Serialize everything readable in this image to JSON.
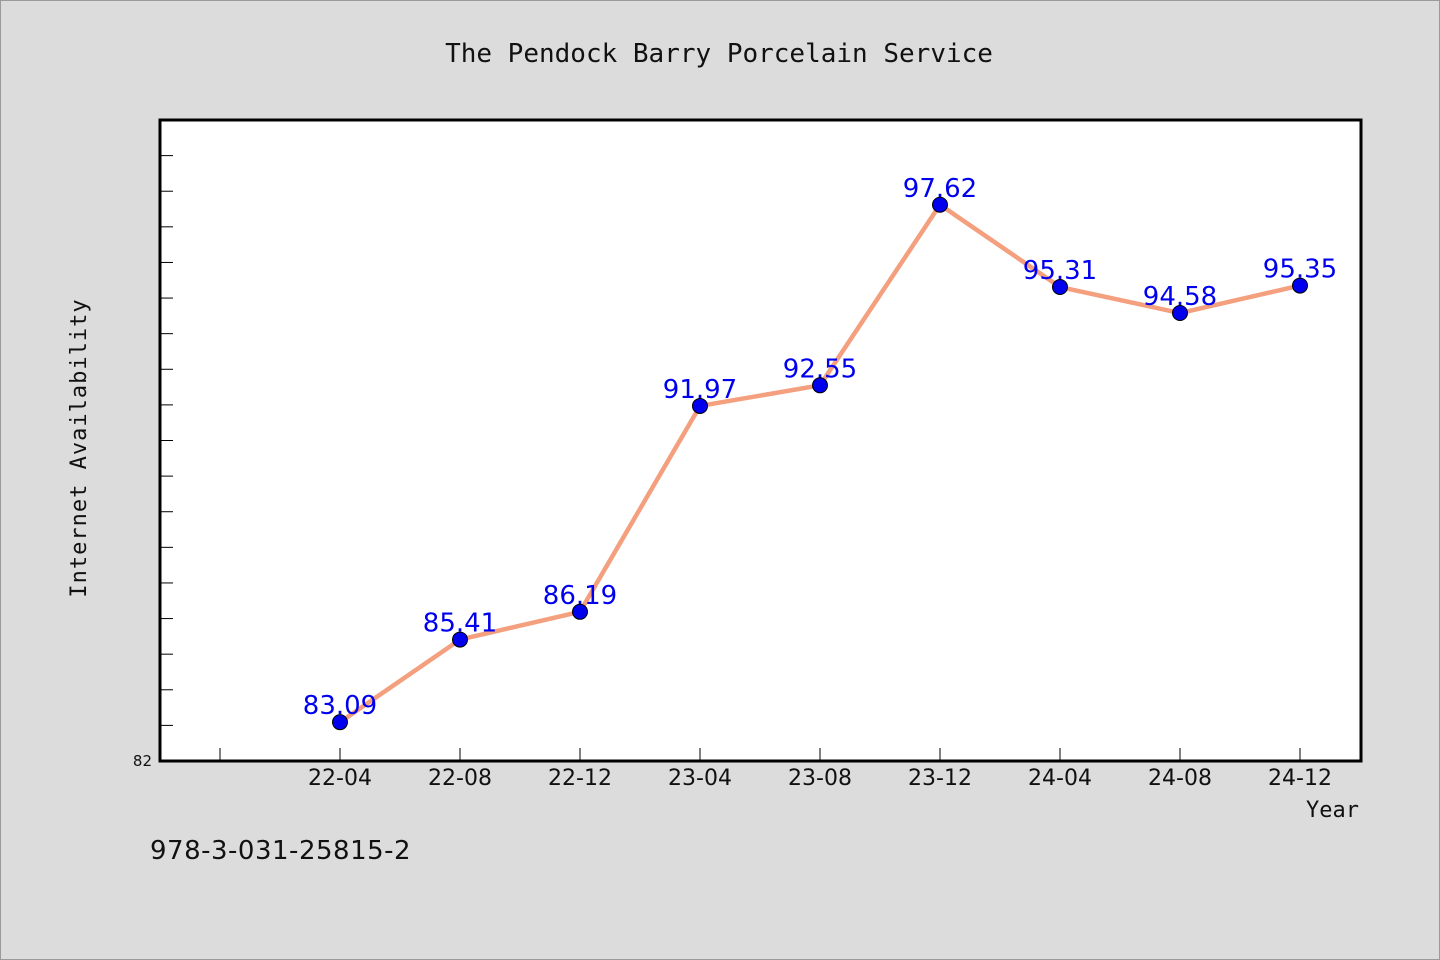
{
  "chart_data": {
    "type": "line",
    "title": "The Pendock Barry Porcelain Service",
    "xlabel": "Year",
    "ylabel": "Internet Availability",
    "categories": [
      "22-04",
      "22-08",
      "22-12",
      "23-04",
      "23-08",
      "23-12",
      "24-04",
      "24-08",
      "24-12"
    ],
    "series": [
      {
        "values": [
          83.09,
          85.41,
          86.19,
          91.97,
          92.55,
          97.62,
          95.31,
          94.58,
          95.35
        ]
      }
    ],
    "ylim": [
      82,
      100
    ],
    "y_tick_labels": [
      "82"
    ],
    "grid": false,
    "line_color": "#f4a07e",
    "marker_color": "#0000ee",
    "label_color": "#0000ee"
  },
  "footer": {
    "isbn": "978-3-031-25815-2"
  }
}
